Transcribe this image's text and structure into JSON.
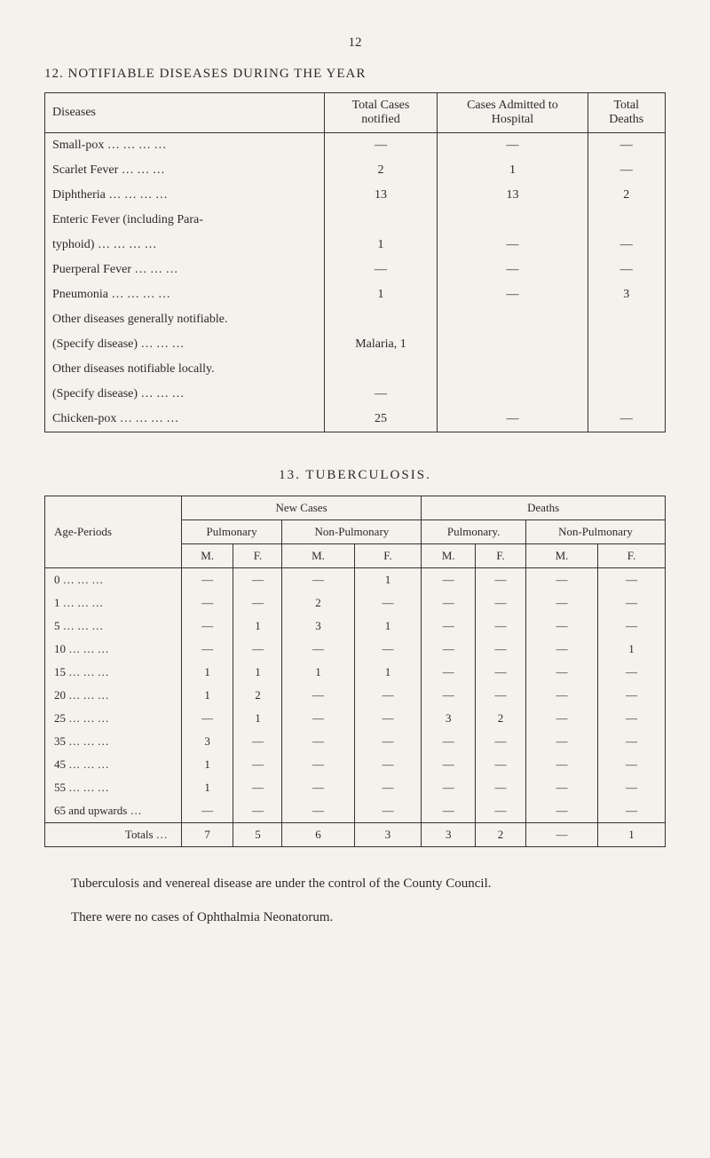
{
  "page_number": "12",
  "section1": {
    "title": "12.  NOTIFIABLE DISEASES DURING THE YEAR",
    "headers": {
      "diseases": "Diseases",
      "total_cases": "Total Cases notified",
      "admitted": "Cases Admitted to Hospital",
      "deaths": "Total Deaths"
    },
    "rows": [
      {
        "disease": "Small-pox    …        …        …        …",
        "cases": "—",
        "admitted": "—",
        "deaths": "—"
      },
      {
        "disease": "Scarlet Fever            …        …        …",
        "cases": "2",
        "admitted": "1",
        "deaths": "—"
      },
      {
        "disease": "Diphtheria   …        …        …        …",
        "cases": "13",
        "admitted": "13",
        "deaths": "2"
      },
      {
        "disease": "Enteric   Fever   (including   Para-",
        "cases": "",
        "admitted": "",
        "deaths": ""
      },
      {
        "disease": "   typhoid)   …        …        …        …",
        "cases": "1",
        "admitted": "—",
        "deaths": "—"
      },
      {
        "disease": "Puerperal Fever        …        …        …",
        "cases": "—",
        "admitted": "—",
        "deaths": "—"
      },
      {
        "disease": "Pneumonia  …        …        …        …",
        "cases": "1",
        "admitted": "—",
        "deaths": "3"
      },
      {
        "disease": "Other diseases generally notifiable.",
        "cases": "",
        "admitted": "",
        "deaths": ""
      },
      {
        "disease": "   (Specify disease)  …        …        …",
        "cases": "Malaria, 1",
        "admitted": "",
        "deaths": ""
      },
      {
        "disease": "Other  diseases  notifiable  locally.",
        "cases": "",
        "admitted": "",
        "deaths": ""
      },
      {
        "disease": "   (Specify disease)  …        …        …",
        "cases": "—",
        "admitted": "",
        "deaths": ""
      },
      {
        "disease": "Chicken-pox …        …        …        …",
        "cases": "25",
        "admitted": "—",
        "deaths": "—"
      }
    ]
  },
  "section2": {
    "title": "13.  TUBERCULOSIS.",
    "headers": {
      "age": "Age-Periods",
      "new_cases": "New Cases",
      "deaths": "Deaths",
      "pulmonary": "Pulmonary",
      "non_pulmonary": "Non-Pulmonary",
      "pulmonary_dot": "Pulmonary.",
      "m": "M.",
      "f": "F."
    },
    "rows": [
      {
        "age": " 0   …        …        …",
        "v": [
          "—",
          "—",
          "—",
          "1",
          "—",
          "—",
          "—",
          "—"
        ]
      },
      {
        "age": " 1   …        …        …",
        "v": [
          "—",
          "—",
          "2",
          "—",
          "—",
          "—",
          "—",
          "—"
        ]
      },
      {
        "age": " 5   …        …        …",
        "v": [
          "—",
          "1",
          "3",
          "1",
          "—",
          "—",
          "—",
          "—"
        ]
      },
      {
        "age": "10   …        …        …",
        "v": [
          "—",
          "—",
          "—",
          "—",
          "—",
          "—",
          "—",
          "1"
        ]
      },
      {
        "age": "15   …        …        …",
        "v": [
          "1",
          "1",
          "1",
          "1",
          "—",
          "—",
          "—",
          "—"
        ]
      },
      {
        "age": "20   …        …        …",
        "v": [
          "1",
          "2",
          "—",
          "—",
          "—",
          "—",
          "—",
          "—"
        ]
      },
      {
        "age": "25   …        …        …",
        "v": [
          "—",
          "1",
          "—",
          "—",
          "3",
          "2",
          "—",
          "—"
        ]
      },
      {
        "age": "35   …        …        …",
        "v": [
          "3",
          "—",
          "—",
          "—",
          "—",
          "—",
          "—",
          "—"
        ]
      },
      {
        "age": "45   …        …        …",
        "v": [
          "1",
          "—",
          "—",
          "—",
          "—",
          "—",
          "—",
          "—"
        ]
      },
      {
        "age": "55   …        …        …",
        "v": [
          "1",
          "—",
          "—",
          "—",
          "—",
          "—",
          "—",
          "—"
        ]
      },
      {
        "age": "65 and upwards  …",
        "v": [
          "—",
          "—",
          "—",
          "—",
          "—",
          "—",
          "—",
          "—"
        ]
      }
    ],
    "totals": {
      "label": "Totals  …",
      "v": [
        "7",
        "5",
        "6",
        "3",
        "3",
        "2",
        "—",
        "1"
      ]
    }
  },
  "footnote1": "Tuberculosis and venereal disease are under the control of the County Council.",
  "footnote2": "There were no cases of Ophthalmia Neonatorum."
}
